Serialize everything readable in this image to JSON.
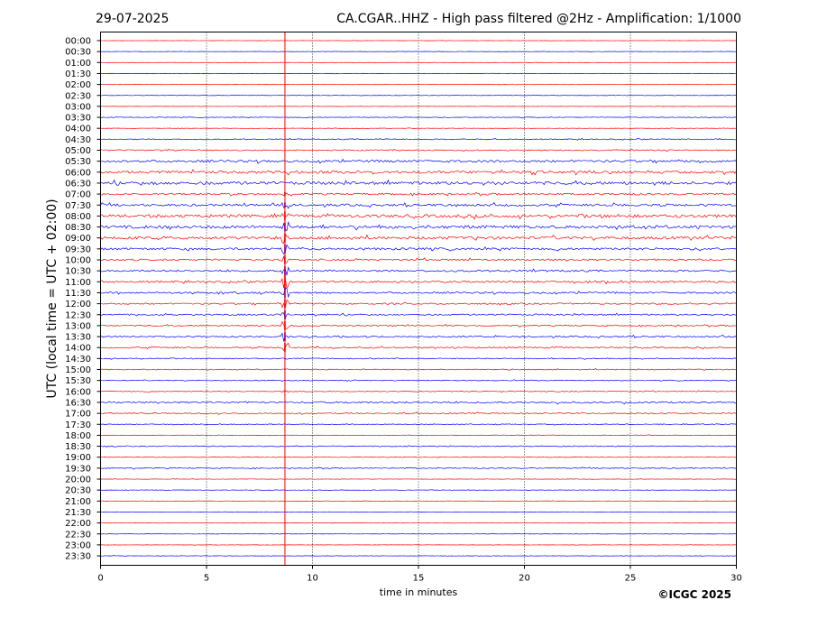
{
  "header": {
    "date": "29-07-2025",
    "title": "CA.CGAR..HHZ - High pass filtered @2Hz - Amplification: 1/1000"
  },
  "footer": {
    "copyright": "©ICGC 2025"
  },
  "chart_data": {
    "type": "line",
    "title": "CA.CGAR..HHZ - High pass filtered @2Hz - Amplification: 1/1000",
    "xlabel": "time in minutes",
    "ylabel": "UTC (local time = UTC + 02:00)",
    "xlim": [
      0,
      30
    ],
    "xticks": [
      0,
      5,
      10,
      15,
      20,
      25,
      30
    ],
    "grid": "vertical dotted at each x tick",
    "trace_colors": [
      "#ff0000",
      "#0000ff"
    ],
    "event_marker_minute": 8.7,
    "event_marker_color": "#ff0000",
    "rows": [
      "00:00",
      "00:30",
      "01:00",
      "01:30",
      "02:00",
      "02:30",
      "03:00",
      "03:30",
      "04:00",
      "04:30",
      "05:00",
      "05:30",
      "06:00",
      "06:30",
      "07:00",
      "07:30",
      "08:00",
      "08:30",
      "09:00",
      "09:30",
      "10:00",
      "10:30",
      "11:00",
      "11:30",
      "12:00",
      "12:30",
      "13:00",
      "13:30",
      "14:00",
      "14:30",
      "15:00",
      "15:30",
      "16:00",
      "16:30",
      "17:00",
      "17:30",
      "18:00",
      "18:30",
      "19:00",
      "19:30",
      "20:00",
      "20:30",
      "21:00",
      "21:30",
      "22:00",
      "22:30",
      "23:00",
      "23:30"
    ],
    "noise_level": [
      0.15,
      0.15,
      0.15,
      0.2,
      0.15,
      0.2,
      0.15,
      0.3,
      0.2,
      0.5,
      0.6,
      1.2,
      1.4,
      1.6,
      1.0,
      1.2,
      1.6,
      1.6,
      1.5,
      1.2,
      1.0,
      1.0,
      1.0,
      0.9,
      0.8,
      0.8,
      0.7,
      0.8,
      0.7,
      0.5,
      0.5,
      0.4,
      0.5,
      0.9,
      0.6,
      0.4,
      0.3,
      0.5,
      0.3,
      0.5,
      0.2,
      0.2,
      0.2,
      0.2,
      0.2,
      0.2,
      0.15,
      0.2
    ],
    "event_amplitude": [
      0,
      0,
      0,
      0,
      0,
      0,
      0,
      0,
      0,
      0,
      0,
      0,
      0,
      0,
      2,
      3,
      5,
      5,
      5,
      5,
      5,
      5,
      9,
      6,
      5,
      5,
      5,
      5,
      5,
      0.5,
      0.5,
      0.5,
      0.5,
      0,
      0,
      0,
      0,
      0,
      0,
      0,
      0,
      0,
      0,
      0,
      0,
      0,
      0,
      0
    ]
  }
}
